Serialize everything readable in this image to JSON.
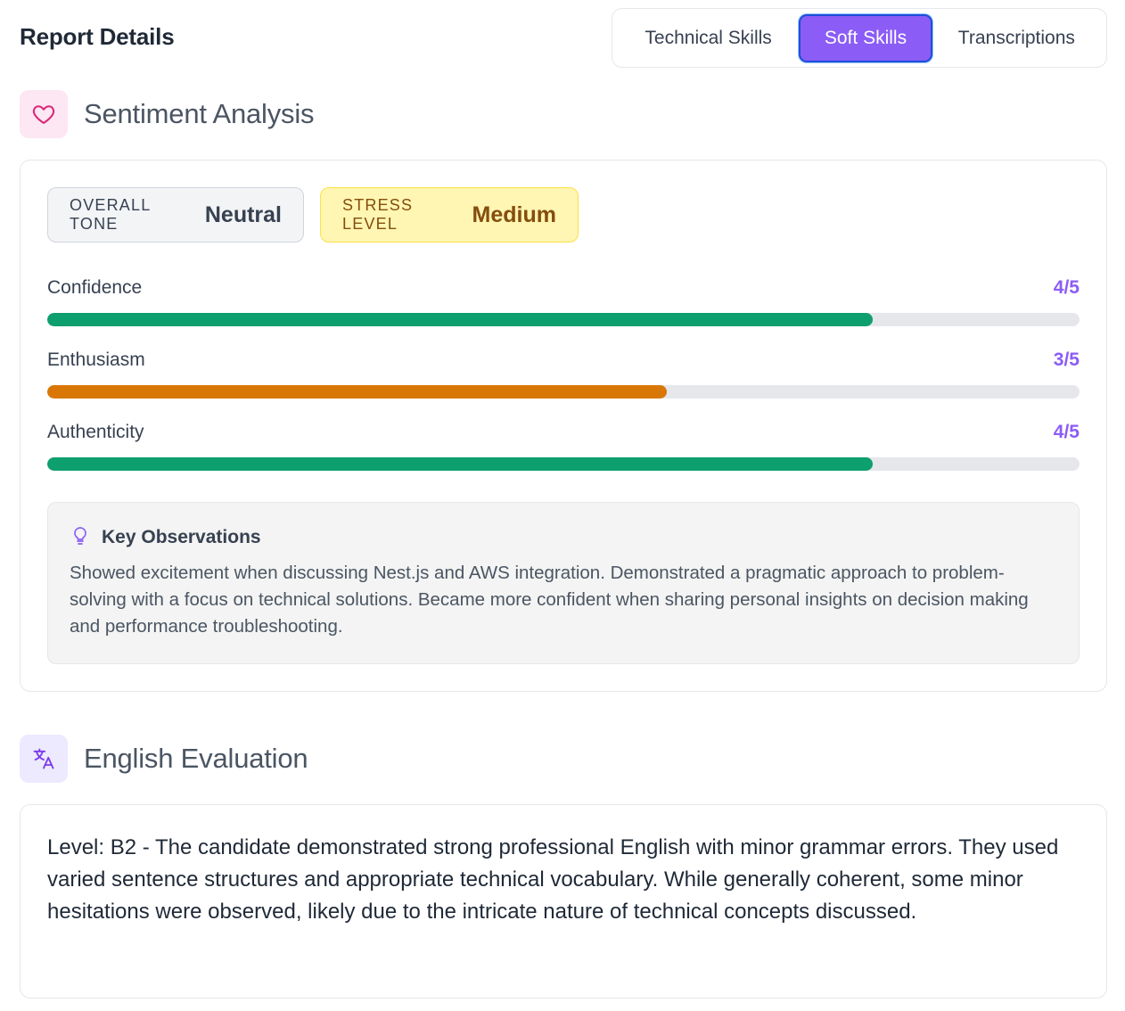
{
  "header": {
    "title": "Report Details",
    "tabs": [
      {
        "label": "Technical Skills",
        "active": false
      },
      {
        "label": "Soft Skills",
        "active": true
      },
      {
        "label": "Transcriptions",
        "active": false
      }
    ]
  },
  "sentiment": {
    "title": "Sentiment Analysis",
    "icon": "heart-icon",
    "overall_tone": {
      "label": "OVERALL TONE",
      "value": "Neutral"
    },
    "stress_level": {
      "label": "STRESS LEVEL",
      "value": "Medium"
    },
    "metrics": [
      {
        "label": "Confidence",
        "score": "4/5",
        "fraction": 0.8,
        "color": "#0e9f6e"
      },
      {
        "label": "Enthusiasm",
        "score": "3/5",
        "fraction": 0.6,
        "color": "#d97706"
      },
      {
        "label": "Authenticity",
        "score": "4/5",
        "fraction": 0.8,
        "color": "#0e9f6e"
      }
    ],
    "observations": {
      "title": "Key Observations",
      "icon": "lightbulb-icon",
      "text": "Showed excitement when discussing Nest.js and AWS integration. Demonstrated a pragmatic approach to problem-solving with a focus on technical solutions. Became more confident when sharing personal insights on decision making and performance troubleshooting."
    }
  },
  "english": {
    "title": "English Evaluation",
    "icon": "translate-icon",
    "text": "Level: B2 - The candidate demonstrated strong professional English with minor grammar errors. They used varied sentence structures and appropriate technical vocabulary. While generally coherent, some minor hesitations were observed, likely due to the intricate nature of technical concepts discussed."
  },
  "colors": {
    "accent": "#8b5cf6",
    "green": "#0e9f6e",
    "orange": "#d97706"
  }
}
